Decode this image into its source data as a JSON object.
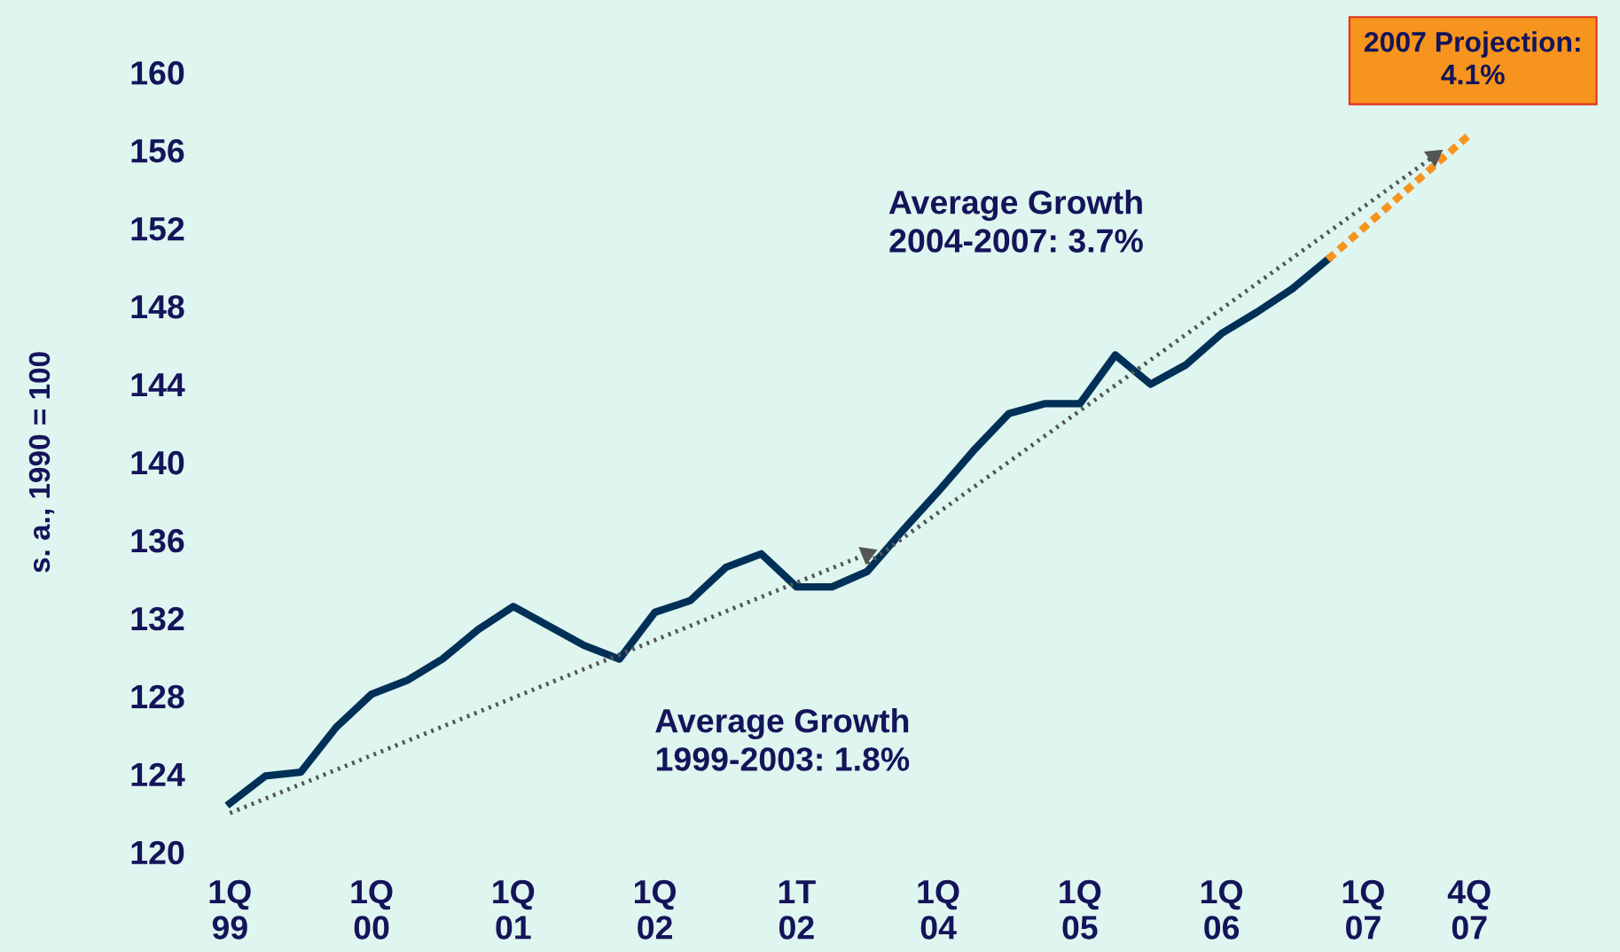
{
  "chart_data": {
    "type": "line",
    "ylabel": "s. a., 1990 = 100",
    "categories": [
      "1Q\n99",
      null,
      null,
      null,
      "1Q\n00",
      null,
      null,
      null,
      "1Q\n01",
      null,
      null,
      null,
      "1Q\n02",
      null,
      null,
      null,
      "1T\n02",
      null,
      null,
      null,
      "1Q\n04",
      null,
      null,
      null,
      "1Q\n05",
      null,
      null,
      null,
      "1Q\n06",
      null,
      null,
      null,
      "1Q\n07",
      null,
      null,
      "4Q\n07"
    ],
    "series": [
      {
        "color": "#003057",
        "line_style": "solid",
        "values": [
          122.5,
          123.9,
          124.1,
          126.4,
          128.1,
          128.8,
          129.9,
          131.4,
          132.6,
          131.6,
          130.6,
          129.9,
          132.3,
          132.9,
          134.6,
          135.3,
          133.6,
          133.6,
          134.4,
          136.5,
          138.5,
          140.6,
          142.5,
          143.0,
          143.0,
          145.5,
          144.0,
          145.0,
          146.6,
          147.7,
          148.9,
          150.4,
          null,
          null,
          null,
          null
        ]
      },
      {
        "color": "#f7941d",
        "line_style": "dashed",
        "values": [
          null,
          null,
          null,
          null,
          null,
          null,
          null,
          null,
          null,
          null,
          null,
          null,
          null,
          null,
          null,
          null,
          null,
          null,
          null,
          null,
          null,
          null,
          null,
          null,
          null,
          null,
          null,
          null,
          null,
          null,
          null,
          150.4,
          152.0,
          153.6,
          155.2,
          156.8
        ]
      },
      {
        "color": "#555555",
        "line_style": "dotted",
        "marker": "triangle",
        "values": [
          122.0,
          null,
          null,
          null,
          null,
          null,
          null,
          null,
          null,
          null,
          null,
          null,
          null,
          null,
          null,
          null,
          null,
          null,
          135.3,
          null,
          null,
          null,
          null,
          null,
          null,
          null,
          null,
          null,
          null,
          null,
          null,
          null,
          null,
          null,
          null,
          null
        ]
      },
      {
        "color": "#555555",
        "line_style": "dotted",
        "marker": "triangle",
        "values": [
          null,
          null,
          null,
          null,
          null,
          null,
          null,
          null,
          null,
          null,
          null,
          null,
          null,
          null,
          null,
          null,
          null,
          null,
          134.8,
          null,
          null,
          null,
          null,
          null,
          null,
          null,
          null,
          null,
          null,
          null,
          null,
          null,
          null,
          null,
          155.7,
          null
        ]
      }
    ],
    "ylim": [
      120,
      160
    ],
    "yticks": [
      120,
      124,
      128,
      132,
      136,
      140,
      144,
      148,
      152,
      156,
      160
    ],
    "grid": false,
    "legend": false,
    "annotations": [
      "Average Growth\n2004-2007: 3.7%",
      "Average Growth\n1999-2003: 1.8%",
      "2007 Projection:\n4.1%"
    ]
  }
}
